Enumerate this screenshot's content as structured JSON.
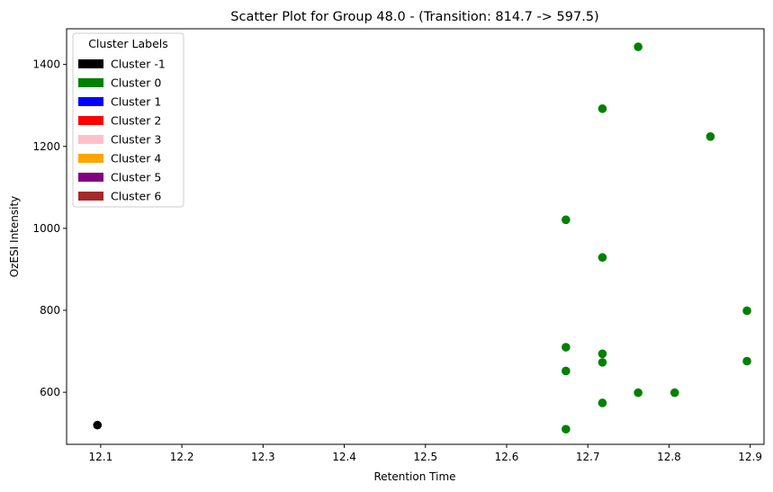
{
  "chart_data": {
    "type": "scatter",
    "title": "Scatter Plot for Group 48.0 -  (Transition: 814.7 -> 597.5)",
    "xlabel": "Retention Time",
    "ylabel": "OzESI Intensity",
    "xlim": [
      12.058,
      12.917
    ],
    "ylim": [
      473,
      1487
    ],
    "xticks": [
      12.1,
      12.2,
      12.3,
      12.4,
      12.5,
      12.6,
      12.7,
      12.8,
      12.9
    ],
    "yticks": [
      600,
      800,
      1000,
      1200,
      1400
    ],
    "grid": false,
    "legend": {
      "title": "Cluster Labels",
      "placement": "top-left",
      "entries": [
        {
          "label": "Cluster -1",
          "color": "#000000"
        },
        {
          "label": "Cluster 0",
          "color": "#008000"
        },
        {
          "label": "Cluster 1",
          "color": "#0000ff"
        },
        {
          "label": "Cluster 2",
          "color": "#ff0000"
        },
        {
          "label": "Cluster 3",
          "color": "#ffc0cb"
        },
        {
          "label": "Cluster 4",
          "color": "#ffa500"
        },
        {
          "label": "Cluster 5",
          "color": "#800080"
        },
        {
          "label": "Cluster 6",
          "color": "#a52a2a"
        }
      ]
    },
    "series": [
      {
        "cluster": -1,
        "color": "#000000",
        "points": [
          [
            12.096,
            520
          ]
        ]
      },
      {
        "cluster": 0,
        "color": "#008000",
        "points": [
          [
            12.762,
            1443
          ],
          [
            12.718,
            1292
          ],
          [
            12.851,
            1224
          ],
          [
            12.673,
            1021
          ],
          [
            12.718,
            929
          ],
          [
            12.896,
            799
          ],
          [
            12.673,
            710
          ],
          [
            12.718,
            694
          ],
          [
            12.896,
            676
          ],
          [
            12.718,
            673
          ],
          [
            12.673,
            652
          ],
          [
            12.762,
            599
          ],
          [
            12.807,
            599
          ],
          [
            12.718,
            574
          ],
          [
            12.673,
            510
          ]
        ]
      }
    ]
  }
}
